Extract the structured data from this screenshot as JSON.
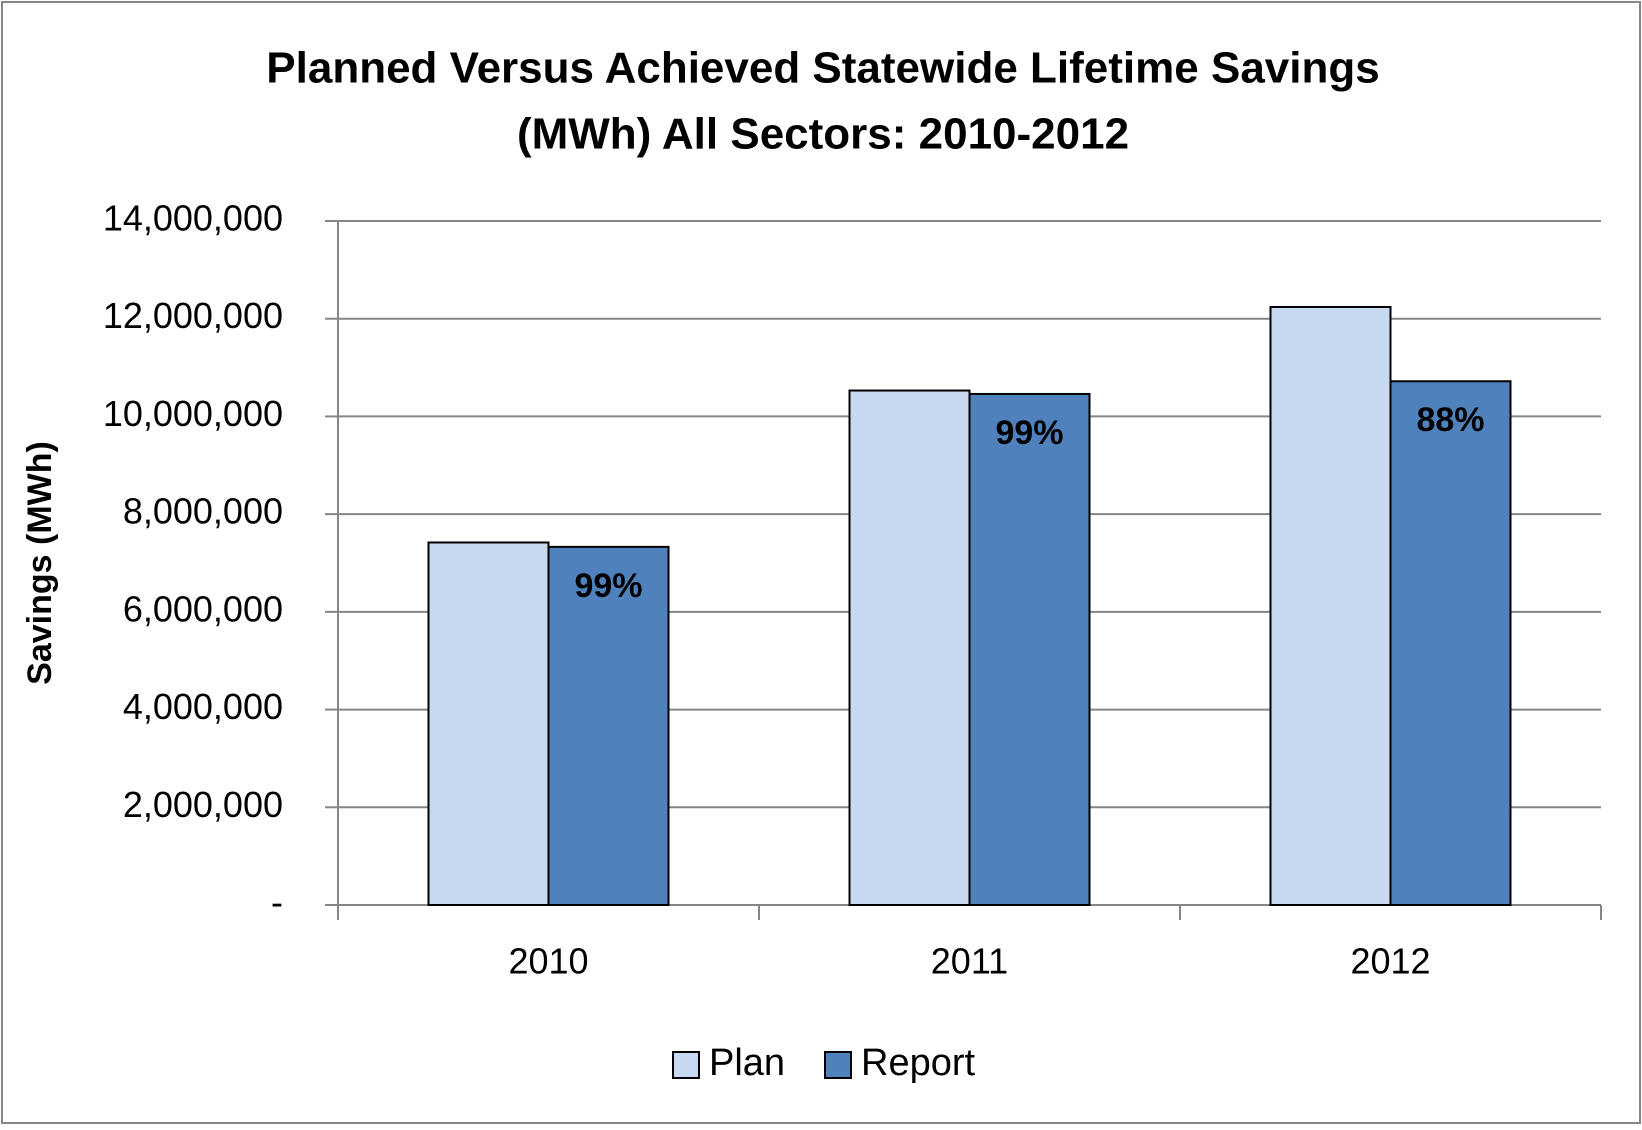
{
  "chart_data": {
    "type": "bar",
    "title": [
      "Planned Versus Achieved Statewide Lifetime Savings",
      "(MWh) All Sectors: 2010-2012"
    ],
    "y_label": "Savings (MWh)",
    "categories": [
      "2010",
      "2011",
      "2012"
    ],
    "series": [
      {
        "name": "Plan",
        "color": "#c6d9f1",
        "values": [
          7420000,
          10530000,
          12240000
        ]
      },
      {
        "name": "Report",
        "color": "#4f81bd",
        "values": [
          7330000,
          10460000,
          10720000
        ]
      }
    ],
    "annotations": [
      "99%",
      "99%",
      "88%"
    ],
    "ylim": [
      0,
      14000000
    ],
    "yticks": [
      {
        "value": 0,
        "label": "-"
      },
      {
        "value": 2000000,
        "label": "2,000,000"
      },
      {
        "value": 4000000,
        "label": "4,000,000"
      },
      {
        "value": 6000000,
        "label": "6,000,000"
      },
      {
        "value": 8000000,
        "label": "8,000,000"
      },
      {
        "value": 10000000,
        "label": "10,000,000"
      },
      {
        "value": 12000000,
        "label": "12,000,000"
      },
      {
        "value": 14000000,
        "label": "14,000,000"
      }
    ],
    "grid": true,
    "legend": "bottom"
  }
}
